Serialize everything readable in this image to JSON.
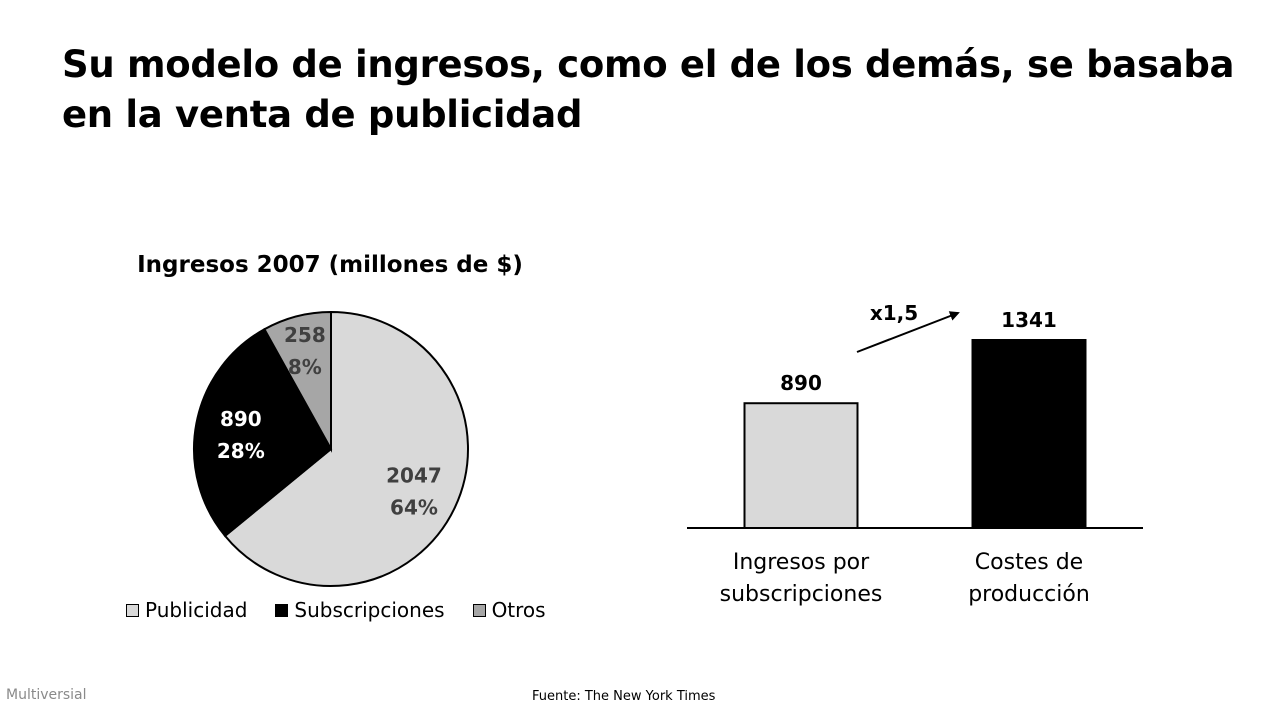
{
  "slide": {
    "title": "Su modelo de ingresos, como el de los demás, se basaba en la venta de publicidad",
    "footer_brand": "Multiversial",
    "footer_source": "Fuente: The New York Times"
  },
  "chart_data": [
    {
      "type": "pie",
      "title": "Ingresos 2007 (millones de $)",
      "slices": [
        {
          "name": "Publicidad",
          "value": 2047,
          "percent_label": "64%",
          "color": "#d9d9d9",
          "text_color": "#404040"
        },
        {
          "name": "Subscripciones",
          "value": 890,
          "percent_label": "28%",
          "color": "#000000",
          "text_color": "#ffffff"
        },
        {
          "name": "Otros",
          "value": 258,
          "percent_label": "8%",
          "color": "#a6a6a6",
          "text_color": "#404040"
        }
      ],
      "legend_position": "bottom"
    },
    {
      "type": "bar",
      "categories": [
        "Ingresos por\nsubscripciones",
        "Costes de\nproducción"
      ],
      "values": [
        890,
        1341
      ],
      "colors": [
        "#d9d9d9",
        "#000000"
      ],
      "data_labels": [
        "890",
        "1341"
      ],
      "annotation": "x1,5",
      "ylim": [
        0,
        1341
      ]
    }
  ]
}
